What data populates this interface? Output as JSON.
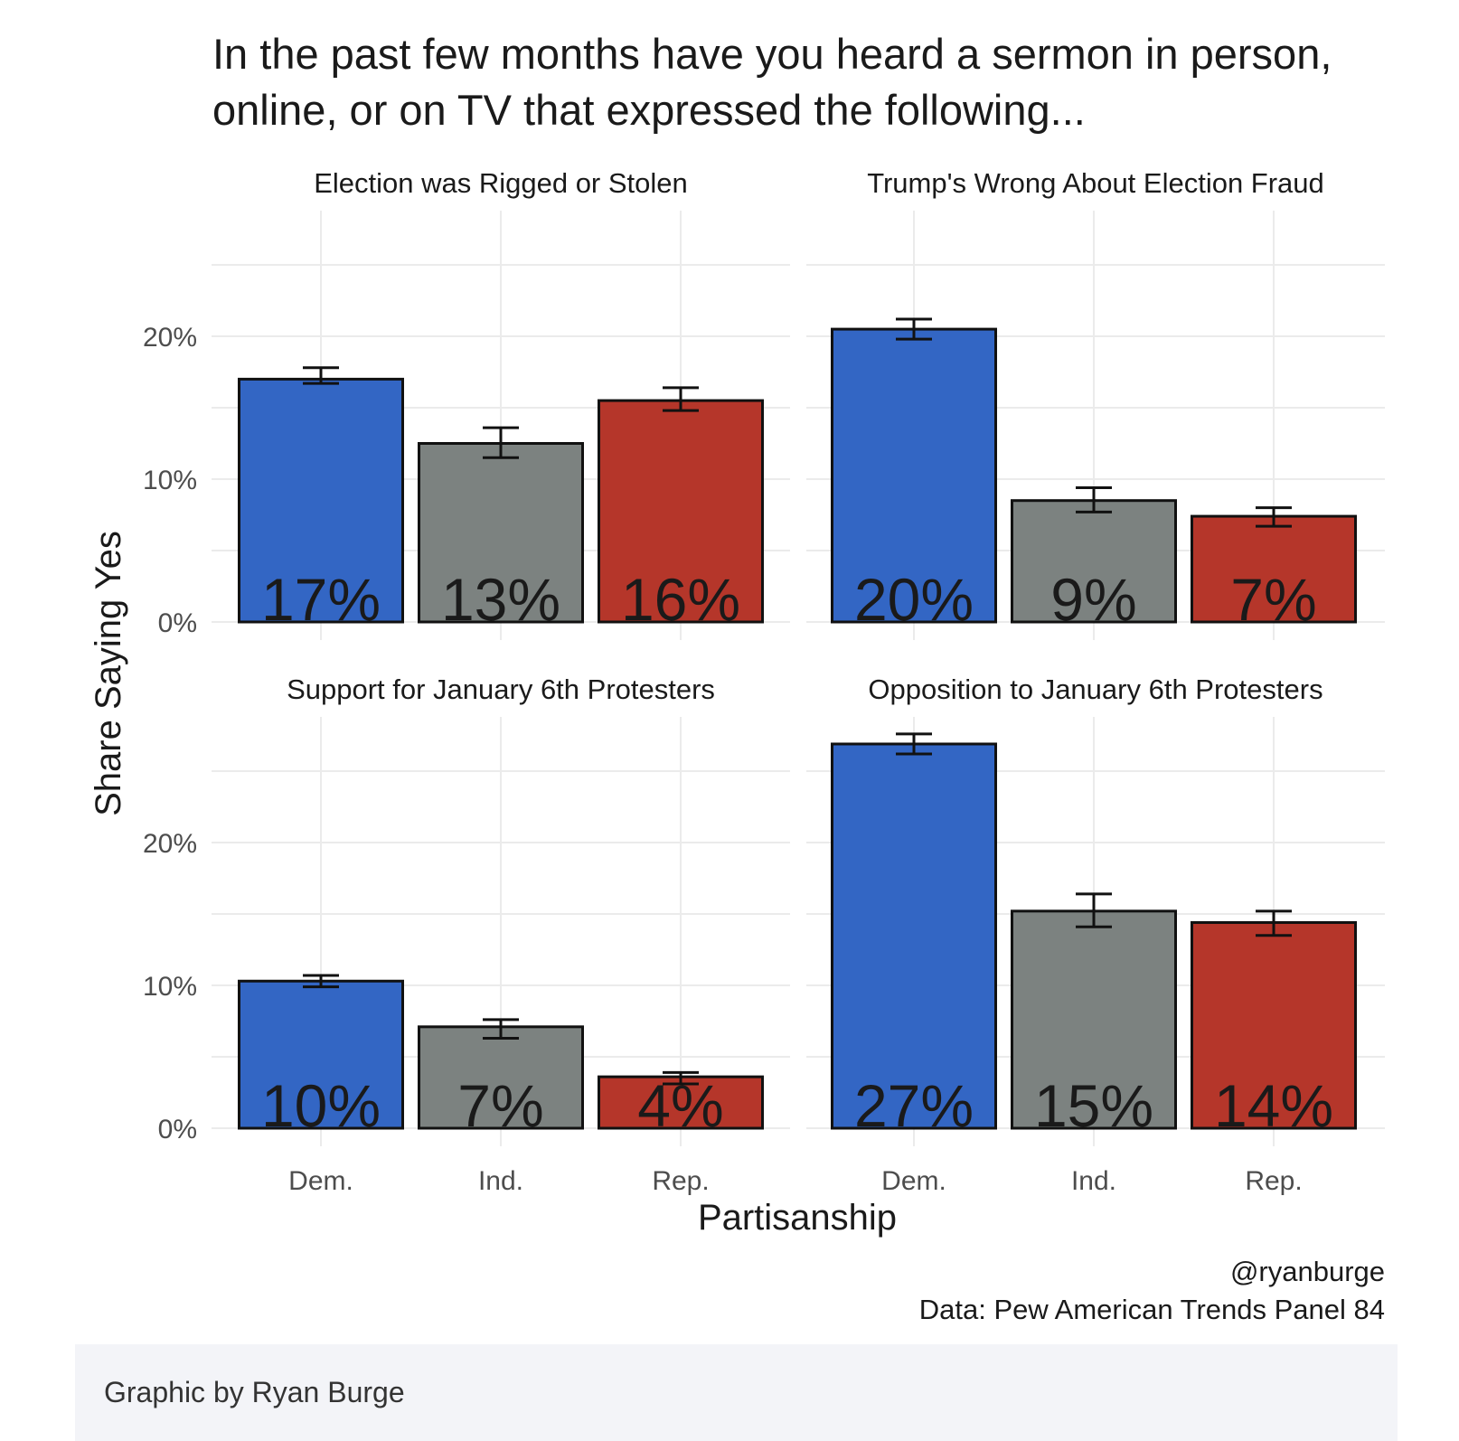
{
  "chart_data": {
    "type": "bar",
    "title_lines": [
      "In the past few months have you heard a sermon in person,",
      "online, or on TV that expressed the following..."
    ],
    "ylabel": "Share Saying Yes",
    "xlabel": "Partisanship",
    "categories": [
      "Dem.",
      "Ind.",
      "Rep."
    ],
    "y_ticks": [
      "0%",
      "10%",
      "20%"
    ],
    "ylim": [
      0,
      0.28
    ],
    "colors": {
      "Dem.": "#3366c4",
      "Ind.": "#7c8280",
      "Rep.": "#b5362a"
    },
    "panels": [
      {
        "name": "Election was Rigged or Stolen",
        "values": [
          0.17,
          0.125,
          0.155
        ],
        "error_low": [
          0.167,
          0.115,
          0.148
        ],
        "error_high": [
          0.178,
          0.136,
          0.164
        ],
        "labels": [
          "17%",
          "13%",
          "16%"
        ]
      },
      {
        "name": "Trump's Wrong About Election Fraud",
        "values": [
          0.205,
          0.085,
          0.074
        ],
        "error_low": [
          0.198,
          0.077,
          0.067
        ],
        "error_high": [
          0.212,
          0.094,
          0.08
        ],
        "labels": [
          "20%",
          "9%",
          "7%"
        ]
      },
      {
        "name": "Support for January 6th Protesters",
        "values": [
          0.103,
          0.071,
          0.036
        ],
        "error_low": [
          0.099,
          0.063,
          0.031
        ],
        "error_high": [
          0.107,
          0.076,
          0.039
        ],
        "labels": [
          "10%",
          "7%",
          "4%"
        ]
      },
      {
        "name": "Opposition to January 6th Protesters",
        "values": [
          0.269,
          0.152,
          0.144
        ],
        "error_low": [
          0.262,
          0.141,
          0.135
        ],
        "error_high": [
          0.276,
          0.164,
          0.152
        ],
        "labels": [
          "27%",
          "15%",
          "14%"
        ]
      }
    ],
    "caption": [
      "@ryanburge",
      "Data: Pew American Trends Panel 84"
    ],
    "grid": true
  },
  "credit": "Graphic by Ryan Burge"
}
